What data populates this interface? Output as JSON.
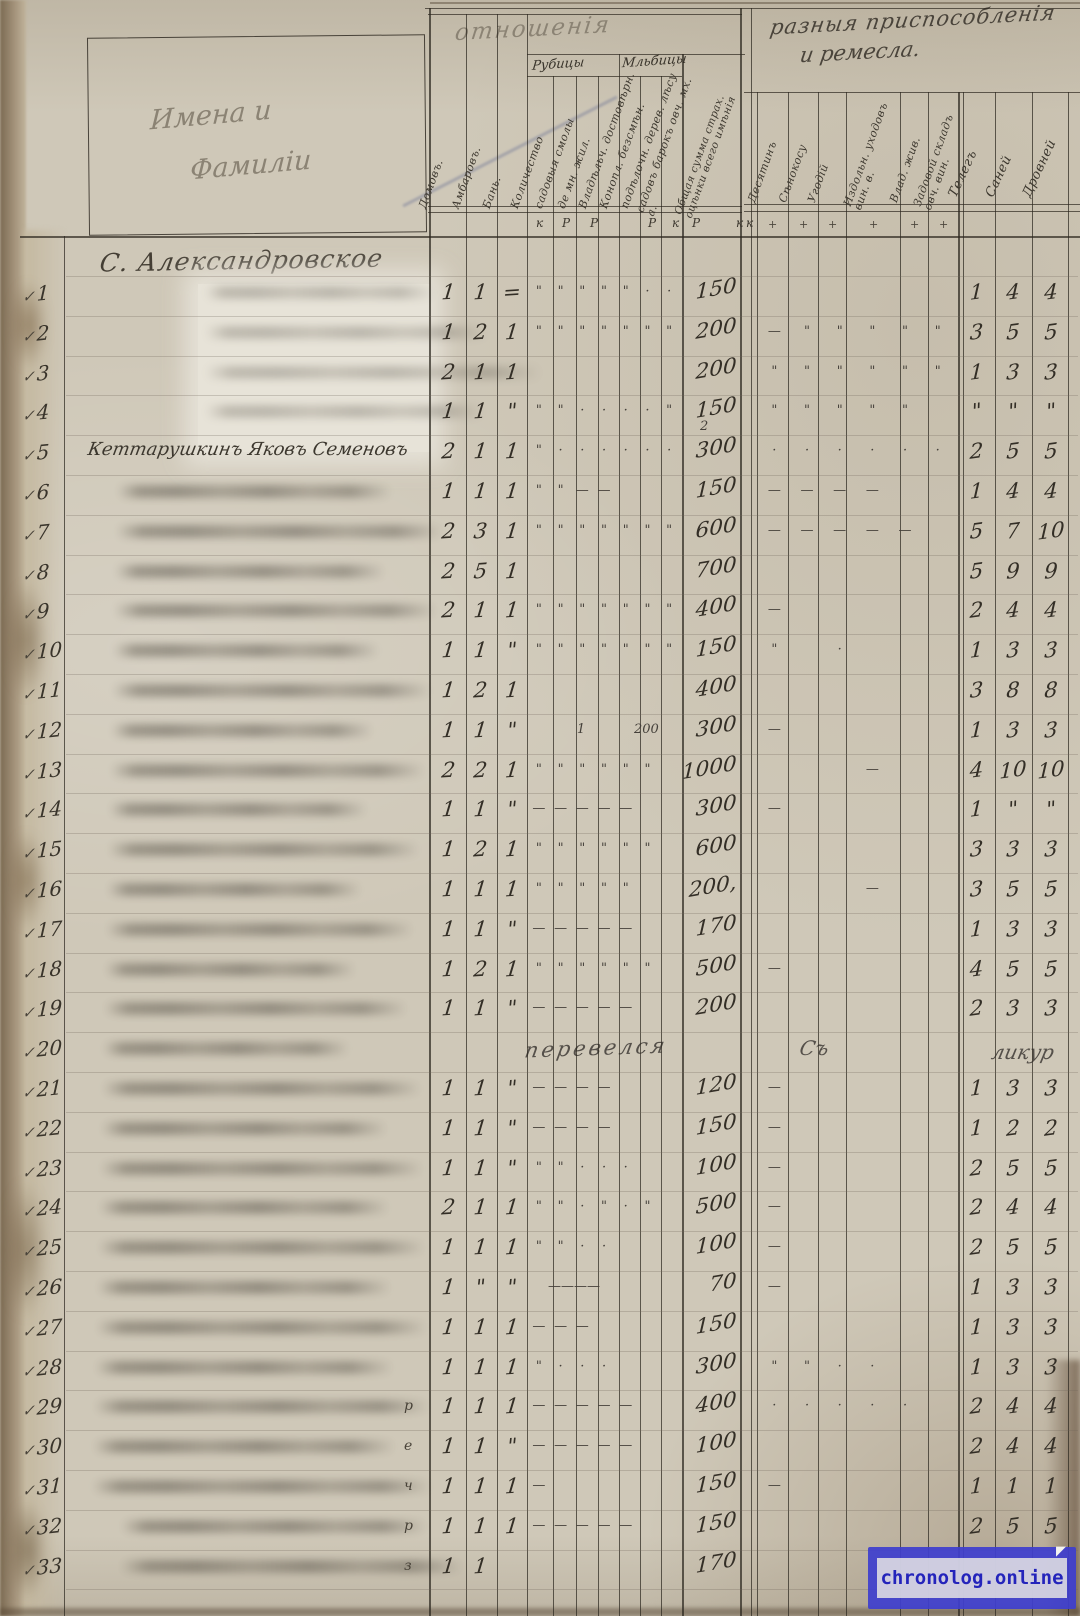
{
  "header": {
    "names_title_line1": "Имена и",
    "names_title_line2": "Фамиліи",
    "middle_group_title": "отношенія",
    "right_group_title_line1": "разныя приспособленія",
    "right_group_title_line2": "и ремесла.",
    "subgroup_left": "Рубицы",
    "subgroup_right": "Мльбицы",
    "middle_columns": [
      "Домовъ.",
      "Амбаровъ.",
      "Бань.",
      "Количество",
      "садовыя смолы",
      "де мн. жил.",
      "Владѣльч. достовѣрн.",
      "Конопл. безсмѣн.",
      "подѣлочн. дерев. лѣсу",
      "садовъ барокъ овч. мх. а."
    ],
    "sum_column": "Общая сумма страх. оцѣнки всего имѣнія",
    "middle_units": [
      "к",
      "Р",
      "Р",
      "Р",
      "к",
      "Р",
      "к",
      "к"
    ],
    "right_columns": [
      "Десятинъ",
      "Сѣнокосу",
      "Угодій",
      "Издольн. уходовъ вин. в.",
      "Влад. жив.",
      "Задовой складъ овч. вин."
    ],
    "right_numeric_columns": [
      "Телегъ",
      "Саней",
      "Дровней"
    ]
  },
  "section_heading": "С. Александровское",
  "row20": {
    "mid": "перевелся",
    "right": "Съ",
    "far_right": "ликур"
  },
  "rows": [
    {
      "n": "1",
      "name": "",
      "c": [
        "1",
        "1",
        "="
      ],
      "m": [
        "\"",
        "\"",
        "\"",
        "\"",
        "\"",
        "·",
        "·"
      ],
      "s": "150",
      "sn": "",
      "rm": [],
      "r": [
        "1",
        "4",
        "4"
      ],
      "p": ""
    },
    {
      "n": "2",
      "name": "",
      "c": [
        "1",
        "2",
        "1"
      ],
      "m": [
        "\"",
        "\"",
        "\"",
        "\"",
        "\"",
        "\"",
        "\""
      ],
      "s": "200",
      "sn": "",
      "rm": [
        "—",
        "\"",
        "\"",
        "\"",
        "\"",
        "\""
      ],
      "r": [
        "3",
        "5",
        "5"
      ],
      "p": ""
    },
    {
      "n": "3",
      "name": "",
      "c": [
        "2",
        "1",
        "1"
      ],
      "m": [],
      "s": "200",
      "sn": "",
      "rm": [
        "\"",
        "\"",
        "\"",
        "\"",
        "\"",
        "\""
      ],
      "r": [
        "1",
        "3",
        "3"
      ],
      "p": ""
    },
    {
      "n": "4",
      "name": "",
      "c": [
        "1",
        "1",
        "\""
      ],
      "m": [
        "\"",
        "\"",
        "·",
        "·",
        "·",
        "·",
        "\""
      ],
      "s": "150",
      "sn": "2",
      "rm": [
        "\"",
        "\"",
        "\"",
        "\"",
        "\"",
        ""
      ],
      "r": [
        "\"",
        "\"",
        "\""
      ],
      "p": ""
    },
    {
      "n": "5",
      "name": "Кеттарушкинъ Яковъ Семеновъ",
      "c": [
        "2",
        "1",
        "1"
      ],
      "m": [
        "\"",
        "·",
        "·",
        "·",
        "·",
        "·",
        "·"
      ],
      "s": "300",
      "sn": "",
      "rm": [
        "·",
        "·",
        "·",
        "·",
        "·",
        "·"
      ],
      "r": [
        "2",
        "5",
        "5"
      ],
      "p": ""
    },
    {
      "n": "6",
      "name": "",
      "c": [
        "1",
        "1",
        "1"
      ],
      "m": [
        "\"",
        "\"",
        "—",
        "—",
        "",
        "",
        ""
      ],
      "s": "150",
      "sn": "",
      "rm": [
        "—",
        "—",
        "—",
        "—",
        "",
        ""
      ],
      "r": [
        "1",
        "4",
        "4"
      ],
      "p": ""
    },
    {
      "n": "7",
      "name": "",
      "c": [
        "2",
        "3",
        "1"
      ],
      "m": [
        "\"",
        "\"",
        "\"",
        "\"",
        "\"",
        "\"",
        "\""
      ],
      "s": "600",
      "sn": "",
      "rm": [
        "—",
        "—",
        "—",
        "—",
        "—",
        ""
      ],
      "r": [
        "5",
        "7",
        "10"
      ],
      "p": ""
    },
    {
      "n": "8",
      "name": "",
      "c": [
        "2",
        "5",
        "1"
      ],
      "m": [],
      "s": "700",
      "sn": "",
      "rm": [],
      "r": [
        "5",
        "9",
        "9"
      ],
      "p": ""
    },
    {
      "n": "9",
      "name": "",
      "c": [
        "2",
        "1",
        "1"
      ],
      "m": [
        "\"",
        "\"",
        "\"",
        "\"",
        "\"",
        "\"",
        "\""
      ],
      "s": "400",
      "sn": "",
      "rm": [
        "—",
        "",
        "",
        "",
        "",
        ""
      ],
      "r": [
        "2",
        "4",
        "4"
      ],
      "p": ""
    },
    {
      "n": "10",
      "name": "",
      "c": [
        "1",
        "1",
        "\""
      ],
      "m": [
        "\"",
        "\"",
        "\"",
        "\"",
        "\"",
        "\"",
        "\""
      ],
      "s": "150",
      "sn": "",
      "rm": [
        "\"",
        "",
        "·",
        "",
        "",
        ""
      ],
      "r": [
        "1",
        "3",
        "3"
      ],
      "p": ""
    },
    {
      "n": "11",
      "name": "",
      "c": [
        "1",
        "2",
        "1"
      ],
      "m": [],
      "s": "400",
      "sn": "",
      "rm": [],
      "r": [
        "3",
        "8",
        "8"
      ],
      "p": ""
    },
    {
      "n": "12",
      "name": "",
      "c": [
        "1",
        "1",
        "\""
      ],
      "m": [
        "",
        "",
        "1",
        "",
        "",
        "200",
        ""
      ],
      "s": "300",
      "sn": "",
      "rm": [
        "—",
        "",
        "",
        "",
        "",
        ""
      ],
      "r": [
        "1",
        "3",
        "3"
      ],
      "p": ""
    },
    {
      "n": "13",
      "name": "",
      "c": [
        "2",
        "2",
        "1"
      ],
      "m": [
        "\"",
        "\"",
        "\"",
        "\"",
        "\"",
        "\"",
        ""
      ],
      "s": "1000",
      "sn": "",
      "rm": [
        "",
        "",
        "",
        "—",
        "",
        ""
      ],
      "r": [
        "4",
        "10",
        "10"
      ],
      "p": ""
    },
    {
      "n": "14",
      "name": "",
      "c": [
        "1",
        "1",
        "\""
      ],
      "m": [
        "—",
        "—",
        "—",
        "—",
        "—",
        "",
        ""
      ],
      "s": "300",
      "sn": "",
      "rm": [
        "—",
        "",
        "",
        "",
        "",
        ""
      ],
      "r": [
        "1",
        "\"",
        "\""
      ],
      "p": ""
    },
    {
      "n": "15",
      "name": "",
      "c": [
        "1",
        "2",
        "1"
      ],
      "m": [
        "\"",
        "\"",
        "\"",
        "\"",
        "\"",
        "\"",
        ""
      ],
      "s": "600",
      "sn": "",
      "rm": [],
      "r": [
        "3",
        "3",
        "3"
      ],
      "p": ""
    },
    {
      "n": "16",
      "name": "",
      "c": [
        "1",
        "1",
        "1"
      ],
      "m": [
        "\"",
        "\"",
        "\"",
        "\"",
        "\"",
        "",
        ""
      ],
      "s": "200,",
      "sn": "",
      "rm": [
        "",
        "",
        "",
        "—",
        "",
        ""
      ],
      "r": [
        "3",
        "5",
        "5"
      ],
      "p": ""
    },
    {
      "n": "17",
      "name": "",
      "c": [
        "1",
        "1",
        "\""
      ],
      "m": [
        "—",
        "—",
        "—",
        "—",
        "—",
        "",
        ""
      ],
      "s": "170",
      "sn": "",
      "rm": [],
      "r": [
        "1",
        "3",
        "3"
      ],
      "p": ""
    },
    {
      "n": "18",
      "name": "",
      "c": [
        "1",
        "2",
        "1"
      ],
      "m": [
        "\"",
        "\"",
        "\"",
        "\"",
        "\"",
        "\"",
        ""
      ],
      "s": "500",
      "sn": "",
      "rm": [
        "—",
        "",
        "",
        "",
        "",
        ""
      ],
      "r": [
        "4",
        "5",
        "5"
      ],
      "p": ""
    },
    {
      "n": "19",
      "name": "",
      "c": [
        "1",
        "1",
        "\""
      ],
      "m": [
        "—",
        "—",
        "—",
        "—",
        "—",
        "",
        ""
      ],
      "s": "200",
      "sn": "",
      "rm": [],
      "r": [
        "2",
        "3",
        "3"
      ],
      "p": ""
    },
    {
      "n": "20",
      "name": "",
      "c": [
        "",
        "",
        ""
      ],
      "m": [],
      "s": "",
      "sn": "",
      "rm": [],
      "r": [
        "",
        "",
        ""
      ],
      "p": "",
      "special": true
    },
    {
      "n": "21",
      "name": "",
      "c": [
        "1",
        "1",
        "\""
      ],
      "m": [
        "—",
        "—",
        "—",
        "—",
        "",
        "",
        ""
      ],
      "s": "120",
      "sn": "",
      "rm": [
        "—",
        "",
        "",
        "",
        "",
        ""
      ],
      "r": [
        "1",
        "3",
        "3"
      ],
      "p": ""
    },
    {
      "n": "22",
      "name": "",
      "c": [
        "1",
        "1",
        "\""
      ],
      "m": [
        "—",
        "—",
        "—",
        "—",
        "",
        "",
        ""
      ],
      "s": "150",
      "sn": "",
      "rm": [
        "—",
        "",
        "",
        "",
        "",
        ""
      ],
      "r": [
        "1",
        "2",
        "2"
      ],
      "p": ""
    },
    {
      "n": "23",
      "name": "",
      "c": [
        "1",
        "1",
        "\""
      ],
      "m": [
        "\"",
        "\"",
        "·",
        "·",
        "·",
        "",
        ""
      ],
      "s": "100",
      "sn": "",
      "rm": [
        "—",
        "",
        "",
        "",
        "",
        ""
      ],
      "r": [
        "2",
        "5",
        "5"
      ],
      "p": ""
    },
    {
      "n": "24",
      "name": "",
      "c": [
        "2",
        "1",
        "1"
      ],
      "m": [
        "\"",
        "\"",
        "·",
        "\"",
        "·",
        "\"",
        ""
      ],
      "s": "500",
      "sn": "",
      "rm": [
        "—",
        "",
        "",
        "",
        "",
        ""
      ],
      "r": [
        "2",
        "4",
        "4"
      ],
      "p": ""
    },
    {
      "n": "25",
      "name": "",
      "c": [
        "1",
        "1",
        "1"
      ],
      "m": [
        "\"",
        "\"",
        "·",
        "·",
        "",
        "",
        ""
      ],
      "s": "100",
      "sn": "",
      "rm": [
        "—",
        "",
        "",
        "",
        "",
        ""
      ],
      "r": [
        "2",
        "5",
        "5"
      ],
      "p": ""
    },
    {
      "n": "26",
      "name": "",
      "c": [
        "1",
        "\"",
        "\""
      ],
      "m": [
        "",
        "——",
        "——",
        "",
        "",
        "",
        ""
      ],
      "s": "70",
      "sn": "",
      "rm": [
        "—",
        "",
        "",
        "",
        "",
        ""
      ],
      "r": [
        "1",
        "3",
        "3"
      ],
      "p": ""
    },
    {
      "n": "27",
      "name": "",
      "c": [
        "1",
        "1",
        "1"
      ],
      "m": [
        "—",
        "—",
        "—",
        "",
        "",
        "",
        ""
      ],
      "s": "150",
      "sn": "",
      "rm": [],
      "r": [
        "1",
        "3",
        "3"
      ],
      "p": ""
    },
    {
      "n": "28",
      "name": "",
      "c": [
        "1",
        "1",
        "1"
      ],
      "m": [
        "\"",
        "·",
        "·",
        "·",
        "",
        "",
        ""
      ],
      "s": "300",
      "sn": "",
      "rm": [
        "\"",
        "\"",
        "·",
        "·",
        "",
        ""
      ],
      "r": [
        "1",
        "3",
        "3"
      ],
      "p": ""
    },
    {
      "n": "29",
      "name": "",
      "c": [
        "1",
        "1",
        "1"
      ],
      "m": [
        "—",
        "—",
        "—",
        "—",
        "—",
        "",
        ""
      ],
      "s": "400",
      "sn": "",
      "rm": [
        "·",
        "·",
        "·",
        "·",
        "·",
        ""
      ],
      "r": [
        "2",
        "4",
        "4"
      ],
      "p": "р"
    },
    {
      "n": "30",
      "name": "",
      "c": [
        "1",
        "1",
        "\""
      ],
      "m": [
        "—",
        "—",
        "—",
        "—",
        "—",
        "",
        ""
      ],
      "s": "100",
      "sn": "",
      "rm": [],
      "r": [
        "2",
        "4",
        "4"
      ],
      "p": "е"
    },
    {
      "n": "31",
      "name": "",
      "c": [
        "1",
        "1",
        "1"
      ],
      "m": [
        "—",
        "",
        "",
        "",
        "",
        "",
        ""
      ],
      "s": "150",
      "sn": "",
      "rm": [
        "—",
        "",
        "",
        "",
        "",
        ""
      ],
      "r": [
        "1",
        "1",
        "1"
      ],
      "p": "ч"
    },
    {
      "n": "32",
      "name": "",
      "c": [
        "1",
        "1",
        "1"
      ],
      "m": [
        "—",
        "—",
        "—",
        "—",
        "—",
        "",
        ""
      ],
      "s": "150",
      "sn": "",
      "rm": [],
      "r": [
        "2",
        "5",
        "5"
      ],
      "p": "р"
    },
    {
      "n": "33",
      "name": "",
      "c": [
        "1",
        "1",
        ""
      ],
      "m": [],
      "s": "170",
      "sn": "",
      "rm": [],
      "r": [
        "",
        "",
        ""
      ],
      "p": "з"
    }
  ],
  "watermark": {
    "text": "chronolog.online"
  }
}
